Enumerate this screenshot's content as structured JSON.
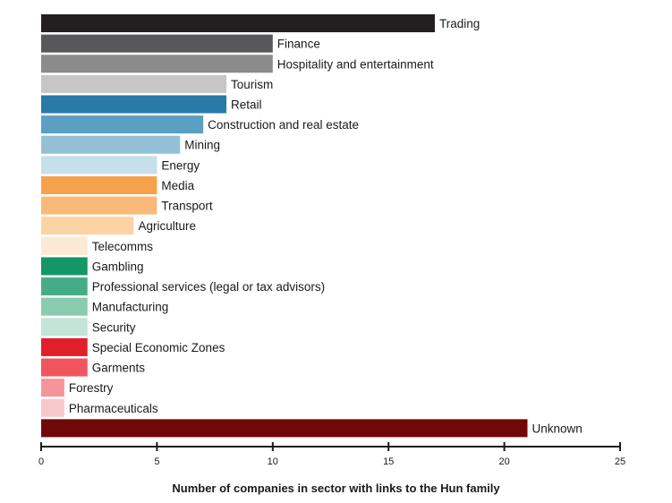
{
  "chart_data": {
    "type": "bar",
    "orientation": "horizontal",
    "xlabel": "Number of companies in sector with links to the Hun family",
    "xlim": [
      0,
      25
    ],
    "xticks": [
      0,
      5,
      10,
      15,
      20,
      25
    ],
    "grid": false,
    "categories": [
      "Trading",
      "Finance",
      "Hospitality and entertainment",
      "Tourism",
      "Retail",
      "Construction and real estate",
      "Mining",
      "Energy",
      "Media",
      "Transport",
      "Agriculture",
      "Telecomms",
      "Gambling",
      "Professional services (legal or tax advisors)",
      "Manufacturing",
      "Security",
      "Special Economic Zones",
      "Garments",
      "Forestry",
      "Pharmaceuticals",
      "Unknown"
    ],
    "values": [
      17,
      10,
      10,
      8,
      8,
      7,
      6,
      5,
      5,
      5,
      4,
      2,
      2,
      2,
      2,
      2,
      2,
      2,
      1,
      1,
      21
    ],
    "colors": [
      "#231f20",
      "#58585a",
      "#8c8b8c",
      "#c6c6c6",
      "#2a7aa8",
      "#5ba0c2",
      "#93c0d6",
      "#c6dfec",
      "#f6a14b",
      "#f9b978",
      "#fcd3a4",
      "#fde9d3",
      "#139767",
      "#45ad86",
      "#8bcbb0",
      "#c4e4d7",
      "#e21e2a",
      "#f1565f",
      "#f59499",
      "#f9c8cb",
      "#700708"
    ]
  }
}
